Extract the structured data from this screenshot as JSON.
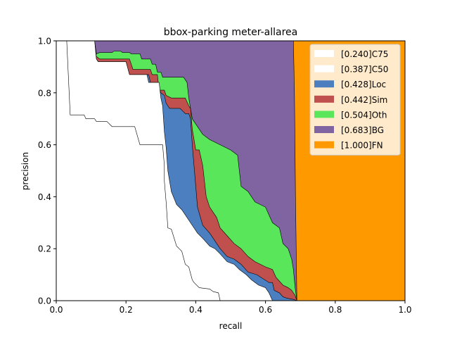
{
  "chart_data": {
    "type": "area",
    "title": "bbox-parking meter-allarea",
    "xlabel": "recall",
    "ylabel": "precision",
    "xlim": [
      0,
      1
    ],
    "ylim": [
      0,
      1
    ],
    "xticks": [
      "0.0",
      "0.2",
      "0.4",
      "0.6",
      "0.8",
      "1.0"
    ],
    "yticks": [
      "0.0",
      "0.2",
      "0.4",
      "0.6",
      "0.8",
      "1.0"
    ],
    "grid": false,
    "legend_position": "top-right",
    "series": [
      {
        "name": "[0.240]C75",
        "color": "#ffffff",
        "points": [
          [
            0,
            1
          ],
          [
            0.03,
            1
          ],
          [
            0.04,
            0.715
          ],
          [
            0.08,
            0.715
          ],
          [
            0.085,
            0.7
          ],
          [
            0.11,
            0.7
          ],
          [
            0.115,
            0.69
          ],
          [
            0.145,
            0.69
          ],
          [
            0.16,
            0.67
          ],
          [
            0.225,
            0.67
          ],
          [
            0.24,
            0.6
          ],
          [
            0.305,
            0.6
          ],
          [
            0.31,
            0.52
          ],
          [
            0.31,
            0.46
          ],
          [
            0.315,
            0.38
          ],
          [
            0.32,
            0.28
          ],
          [
            0.33,
            0.275
          ],
          [
            0.345,
            0.21
          ],
          [
            0.36,
            0.19
          ],
          [
            0.37,
            0.14
          ],
          [
            0.38,
            0.13
          ],
          [
            0.39,
            0.08
          ],
          [
            0.395,
            0.07
          ],
          [
            0.41,
            0.05
          ],
          [
            0.44,
            0.045
          ],
          [
            0.45,
            0.035
          ],
          [
            0.465,
            0.03
          ],
          [
            0.47,
            0
          ]
        ]
      },
      {
        "name": "[0.387]C50",
        "color": "#ffffff",
        "points": [
          [
            0,
            1
          ],
          [
            0.11,
            1
          ],
          [
            0.115,
            0.93
          ],
          [
            0.12,
            0.92
          ],
          [
            0.2,
            0.92
          ],
          [
            0.21,
            0.87
          ],
          [
            0.26,
            0.87
          ],
          [
            0.265,
            0.84
          ],
          [
            0.295,
            0.84
          ],
          [
            0.3,
            0.78
          ],
          [
            0.305,
            0.75
          ],
          [
            0.31,
            0.65
          ],
          [
            0.315,
            0.59
          ],
          [
            0.32,
            0.5
          ],
          [
            0.33,
            0.42
          ],
          [
            0.345,
            0.37
          ],
          [
            0.36,
            0.35
          ],
          [
            0.38,
            0.31
          ],
          [
            0.39,
            0.29
          ],
          [
            0.405,
            0.26
          ],
          [
            0.42,
            0.24
          ],
          [
            0.44,
            0.21
          ],
          [
            0.455,
            0.2
          ],
          [
            0.47,
            0.18
          ],
          [
            0.49,
            0.15
          ],
          [
            0.51,
            0.14
          ],
          [
            0.525,
            0.12
          ],
          [
            0.545,
            0.1
          ],
          [
            0.56,
            0.08
          ],
          [
            0.58,
            0.06
          ],
          [
            0.6,
            0.05
          ],
          [
            0.61,
            0.03
          ],
          [
            0.62,
            0
          ]
        ]
      },
      {
        "name": "[0.428]Loc",
        "color": "#4c7fc0",
        "points": [
          [
            0,
            1
          ],
          [
            0.11,
            1
          ],
          [
            0.115,
            0.93
          ],
          [
            0.12,
            0.92
          ],
          [
            0.2,
            0.92
          ],
          [
            0.21,
            0.87
          ],
          [
            0.265,
            0.87
          ],
          [
            0.27,
            0.84
          ],
          [
            0.29,
            0.84
          ],
          [
            0.3,
            0.8
          ],
          [
            0.31,
            0.79
          ],
          [
            0.315,
            0.76
          ],
          [
            0.325,
            0.74
          ],
          [
            0.355,
            0.74
          ],
          [
            0.37,
            0.72
          ],
          [
            0.38,
            0.72
          ],
          [
            0.385,
            0.7
          ],
          [
            0.39,
            0.6
          ],
          [
            0.395,
            0.52
          ],
          [
            0.4,
            0.44
          ],
          [
            0.405,
            0.36
          ],
          [
            0.42,
            0.29
          ],
          [
            0.44,
            0.26
          ],
          [
            0.46,
            0.22
          ],
          [
            0.47,
            0.2
          ],
          [
            0.49,
            0.17
          ],
          [
            0.51,
            0.16
          ],
          [
            0.53,
            0.14
          ],
          [
            0.55,
            0.11
          ],
          [
            0.575,
            0.1
          ],
          [
            0.61,
            0.07
          ],
          [
            0.62,
            0.07
          ],
          [
            0.625,
            0.04
          ],
          [
            0.64,
            0.03
          ],
          [
            0.65,
            0.015
          ],
          [
            0.66,
            0.01
          ],
          [
            0.68,
            0.005
          ],
          [
            0.69,
            0
          ]
        ]
      },
      {
        "name": "[0.442]Sim",
        "color": "#c0504d",
        "points": [
          [
            0,
            1
          ],
          [
            0.11,
            1
          ],
          [
            0.115,
            0.94
          ],
          [
            0.125,
            0.93
          ],
          [
            0.21,
            0.93
          ],
          [
            0.22,
            0.89
          ],
          [
            0.27,
            0.89
          ],
          [
            0.275,
            0.87
          ],
          [
            0.29,
            0.87
          ],
          [
            0.295,
            0.81
          ],
          [
            0.31,
            0.81
          ],
          [
            0.315,
            0.79
          ],
          [
            0.33,
            0.78
          ],
          [
            0.37,
            0.78
          ],
          [
            0.38,
            0.75
          ],
          [
            0.385,
            0.74
          ],
          [
            0.39,
            0.66
          ],
          [
            0.395,
            0.62
          ],
          [
            0.4,
            0.58
          ],
          [
            0.41,
            0.58
          ],
          [
            0.42,
            0.52
          ],
          [
            0.43,
            0.4
          ],
          [
            0.44,
            0.36
          ],
          [
            0.46,
            0.32
          ],
          [
            0.47,
            0.28
          ],
          [
            0.49,
            0.25
          ],
          [
            0.51,
            0.22
          ],
          [
            0.53,
            0.2
          ],
          [
            0.55,
            0.17
          ],
          [
            0.57,
            0.15
          ],
          [
            0.6,
            0.13
          ],
          [
            0.62,
            0.12
          ],
          [
            0.63,
            0.09
          ],
          [
            0.65,
            0.06
          ],
          [
            0.665,
            0.05
          ],
          [
            0.675,
            0.04
          ],
          [
            0.685,
            0.02
          ],
          [
            0.69,
            0
          ]
        ]
      },
      {
        "name": "[0.504]Oth",
        "color": "#5ae65a",
        "points": [
          [
            0,
            1
          ],
          [
            0.11,
            1
          ],
          [
            0.115,
            0.95
          ],
          [
            0.125,
            0.955
          ],
          [
            0.16,
            0.955
          ],
          [
            0.165,
            0.96
          ],
          [
            0.185,
            0.96
          ],
          [
            0.19,
            0.955
          ],
          [
            0.21,
            0.955
          ],
          [
            0.215,
            0.95
          ],
          [
            0.24,
            0.95
          ],
          [
            0.245,
            0.93
          ],
          [
            0.27,
            0.93
          ],
          [
            0.275,
            0.91
          ],
          [
            0.285,
            0.91
          ],
          [
            0.29,
            0.88
          ],
          [
            0.3,
            0.88
          ],
          [
            0.305,
            0.86
          ],
          [
            0.32,
            0.86
          ],
          [
            0.325,
            0.86
          ],
          [
            0.365,
            0.86
          ],
          [
            0.37,
            0.85
          ],
          [
            0.375,
            0.84
          ],
          [
            0.38,
            0.78
          ],
          [
            0.385,
            0.74
          ],
          [
            0.39,
            0.7
          ],
          [
            0.4,
            0.68
          ],
          [
            0.41,
            0.66
          ],
          [
            0.42,
            0.64
          ],
          [
            0.44,
            0.62
          ],
          [
            0.47,
            0.6
          ],
          [
            0.5,
            0.58
          ],
          [
            0.52,
            0.56
          ],
          [
            0.53,
            0.44
          ],
          [
            0.55,
            0.42
          ],
          [
            0.56,
            0.4
          ],
          [
            0.57,
            0.38
          ],
          [
            0.6,
            0.36
          ],
          [
            0.62,
            0.3
          ],
          [
            0.64,
            0.28
          ],
          [
            0.65,
            0.22
          ],
          [
            0.665,
            0.2
          ],
          [
            0.675,
            0.16
          ],
          [
            0.68,
            0.12
          ],
          [
            0.685,
            0.05
          ],
          [
            0.69,
            0
          ]
        ]
      },
      {
        "name": "[0.683]BG",
        "color": "#8064a2",
        "points": [
          [
            0,
            1
          ],
          [
            0.68,
            1
          ],
          [
            0.683,
            0.8
          ],
          [
            0.686,
            0.4
          ],
          [
            0.69,
            0
          ]
        ]
      },
      {
        "name": "[1.000]FN",
        "color": "#ff9900",
        "points": [
          [
            0,
            1
          ],
          [
            1,
            1
          ],
          [
            1,
            0
          ]
        ]
      }
    ]
  }
}
